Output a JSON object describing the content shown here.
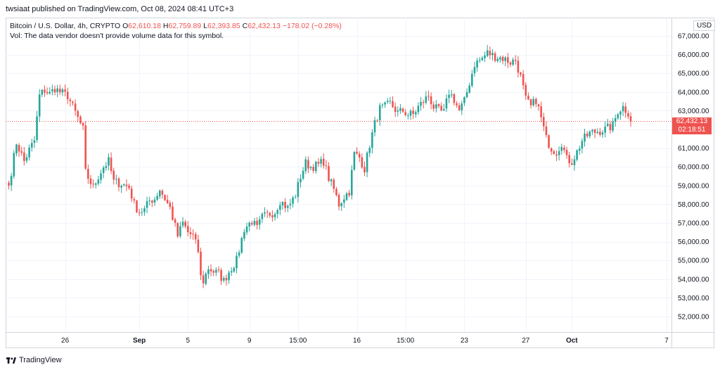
{
  "header": {
    "text": "twsiaat published on TradingView.com, Oct 08, 2024 08:41 UTC+3"
  },
  "legend": {
    "symbol": "Bitcoin / U.S. Dollar, 4h, CRYPTO",
    "o_label": "O",
    "o_value": "62,610.18",
    "h_label": "H",
    "h_value": "62,759.89",
    "l_label": "L",
    "l_value": "62,393.85",
    "c_label": "C",
    "c_value": "62,432.13",
    "change": "−178.02 (−0.28%)",
    "vol_text": "Vol: The data vendor doesn't provide volume data for this symbol."
  },
  "currency": "USD",
  "last_price": {
    "price": "62,432.13",
    "countdown": "02:18:51"
  },
  "footer": {
    "brand": "TradingView"
  },
  "colors": {
    "up": "#26a69a",
    "down": "#ef5350",
    "grid": "#f0f3fa",
    "axis_text": "#131722"
  },
  "chart_data": {
    "type": "candlestick",
    "title": "Bitcoin / U.S. Dollar, 4h, CRYPTO",
    "ylim": [
      51400,
      67300
    ],
    "y_ticks": [
      52000,
      53000,
      54000,
      55000,
      56000,
      57000,
      58000,
      59000,
      60000,
      61000,
      62000,
      63000,
      64000,
      65000,
      66000,
      67000
    ],
    "y_tick_labels": [
      "52,000.00",
      "53,000.00",
      "54,000.00",
      "55,000.00",
      "56,000.00",
      "57,000.00",
      "58,000.00",
      "59,000.00",
      "60,000.00",
      "61,000.00",
      "62,000.00",
      "63,000.00",
      "64,000.00",
      "65,000.00",
      "66,000.00",
      "67,000.00"
    ],
    "x_ticks": [
      {
        "label": "26",
        "bar": 22,
        "bold": false
      },
      {
        "label": "Sep",
        "bar": 51,
        "bold": true
      },
      {
        "label": "5",
        "bar": 70,
        "bold": false
      },
      {
        "label": "9",
        "bar": 94,
        "bold": false
      },
      {
        "label": "15:00",
        "bar": 113,
        "bold": false
      },
      {
        "label": "16",
        "bar": 136,
        "bold": false
      },
      {
        "label": "15:00",
        "bar": 155,
        "bold": false
      },
      {
        "label": "23",
        "bar": 178,
        "bold": false
      },
      {
        "label": "27",
        "bar": 202,
        "bold": false
      },
      {
        "label": "Oct",
        "bar": 220,
        "bold": true
      },
      {
        "label": "7",
        "bar": 257,
        "bold": false
      }
    ],
    "last_close": 62432.13,
    "anchors": [
      [
        0,
        59000
      ],
      [
        3,
        61300
      ],
      [
        6,
        60300
      ],
      [
        8,
        60900
      ],
      [
        10,
        61400
      ],
      [
        12,
        63800
      ],
      [
        14,
        64100
      ],
      [
        16,
        63900
      ],
      [
        18,
        64200
      ],
      [
        20,
        64000
      ],
      [
        23,
        63800
      ],
      [
        26,
        62900
      ],
      [
        29,
        62000
      ],
      [
        30,
        59700
      ],
      [
        33,
        58900
      ],
      [
        35,
        59500
      ],
      [
        37,
        60000
      ],
      [
        39,
        60300
      ],
      [
        41,
        59200
      ],
      [
        44,
        59100
      ],
      [
        47,
        58900
      ],
      [
        49,
        58000
      ],
      [
        51,
        57600
      ],
      [
        53,
        57700
      ],
      [
        55,
        58200
      ],
      [
        57,
        58300
      ],
      [
        59,
        58800
      ],
      [
        61,
        58300
      ],
      [
        63,
        57800
      ],
      [
        66,
        56300
      ],
      [
        68,
        57000
      ],
      [
        70,
        56500
      ],
      [
        72,
        56300
      ],
      [
        74,
        55500
      ],
      [
        75,
        54100
      ],
      [
        76,
        53900
      ],
      [
        78,
        54600
      ],
      [
        80,
        54400
      ],
      [
        82,
        54300
      ],
      [
        84,
        53900
      ],
      [
        86,
        54400
      ],
      [
        89,
        55000
      ],
      [
        92,
        56700
      ],
      [
        95,
        57100
      ],
      [
        97,
        56700
      ],
      [
        99,
        57300
      ],
      [
        102,
        57500
      ],
      [
        104,
        57600
      ],
      [
        106,
        58200
      ],
      [
        109,
        57800
      ],
      [
        112,
        58500
      ],
      [
        114,
        59500
      ],
      [
        116,
        60200
      ],
      [
        118,
        60000
      ],
      [
        121,
        60100
      ],
      [
        123,
        60300
      ],
      [
        125,
        59400
      ],
      [
        127,
        58800
      ],
      [
        129,
        58000
      ],
      [
        131,
        58400
      ],
      [
        133,
        58700
      ],
      [
        135,
        60700
      ],
      [
        137,
        60500
      ],
      [
        139,
        59900
      ],
      [
        141,
        61200
      ],
      [
        143,
        62300
      ],
      [
        145,
        63100
      ],
      [
        147,
        63200
      ],
      [
        149,
        63400
      ],
      [
        152,
        62900
      ],
      [
        154,
        63000
      ],
      [
        156,
        62800
      ],
      [
        158,
        62800
      ],
      [
        160,
        63200
      ],
      [
        162,
        63500
      ],
      [
        164,
        63800
      ],
      [
        166,
        63200
      ],
      [
        168,
        63000
      ],
      [
        170,
        62900
      ],
      [
        172,
        64000
      ],
      [
        174,
        63600
      ],
      [
        176,
        63000
      ],
      [
        178,
        63500
      ],
      [
        180,
        64500
      ],
      [
        182,
        65500
      ],
      [
        185,
        65800
      ],
      [
        187,
        66100
      ],
      [
        190,
        65900
      ],
      [
        193,
        65800
      ],
      [
        196,
        65600
      ],
      [
        198,
        65700
      ],
      [
        200,
        64800
      ],
      [
        202,
        63600
      ],
      [
        204,
        63200
      ],
      [
        206,
        63600
      ],
      [
        208,
        62600
      ],
      [
        210,
        61500
      ],
      [
        212,
        61000
      ],
      [
        214,
        60800
      ],
      [
        216,
        61300
      ],
      [
        218,
        60400
      ],
      [
        220,
        60300
      ],
      [
        222,
        60800
      ],
      [
        224,
        61400
      ],
      [
        227,
        61800
      ],
      [
        230,
        61900
      ],
      [
        233,
        62000
      ],
      [
        236,
        62200
      ],
      [
        238,
        63000
      ],
      [
        240,
        63200
      ],
      [
        242,
        62900
      ],
      [
        243,
        62400
      ]
    ]
  }
}
